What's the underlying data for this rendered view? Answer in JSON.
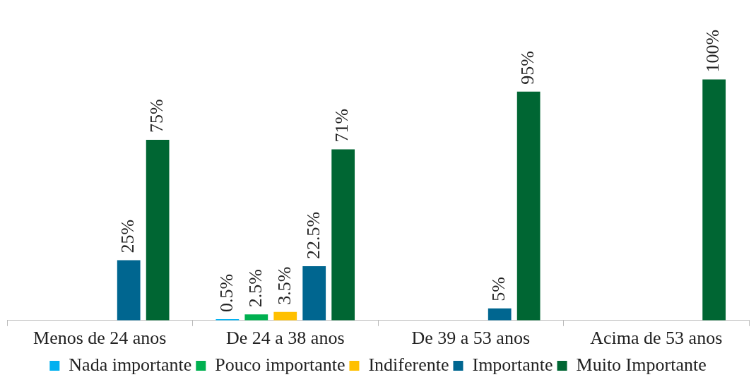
{
  "chart_data": {
    "type": "bar",
    "categories": [
      "Menos de 24 anos",
      "De 24 a 38 anos",
      "De 39 a 53 anos",
      "Acima de 53 anos"
    ],
    "series": [
      {
        "name": "Nada importante",
        "color": "#00b0f0",
        "values": [
          0,
          0.5,
          0,
          0
        ],
        "value_labels": [
          null,
          "0.5%",
          null,
          null
        ]
      },
      {
        "name": "Pouco importante",
        "color": "#00b050",
        "values": [
          0,
          2.5,
          0,
          0
        ],
        "value_labels": [
          null,
          "2.5%",
          null,
          null
        ]
      },
      {
        "name": "Indiferente",
        "color": "#ffc000",
        "values": [
          0,
          3.5,
          0,
          0
        ],
        "value_labels": [
          null,
          "3.5%",
          null,
          null
        ]
      },
      {
        "name": "Importante",
        "color": "#006690",
        "values": [
          25,
          22.5,
          5,
          0
        ],
        "value_labels": [
          "25%",
          "22.5%",
          "5%",
          null
        ]
      },
      {
        "name": "Muito Importante",
        "color": "#006633",
        "values": [
          75,
          71,
          95,
          100
        ],
        "value_labels": [
          "75%",
          "71%",
          "95%",
          "100%"
        ]
      }
    ],
    "grid": false,
    "legend": "bottom"
  }
}
